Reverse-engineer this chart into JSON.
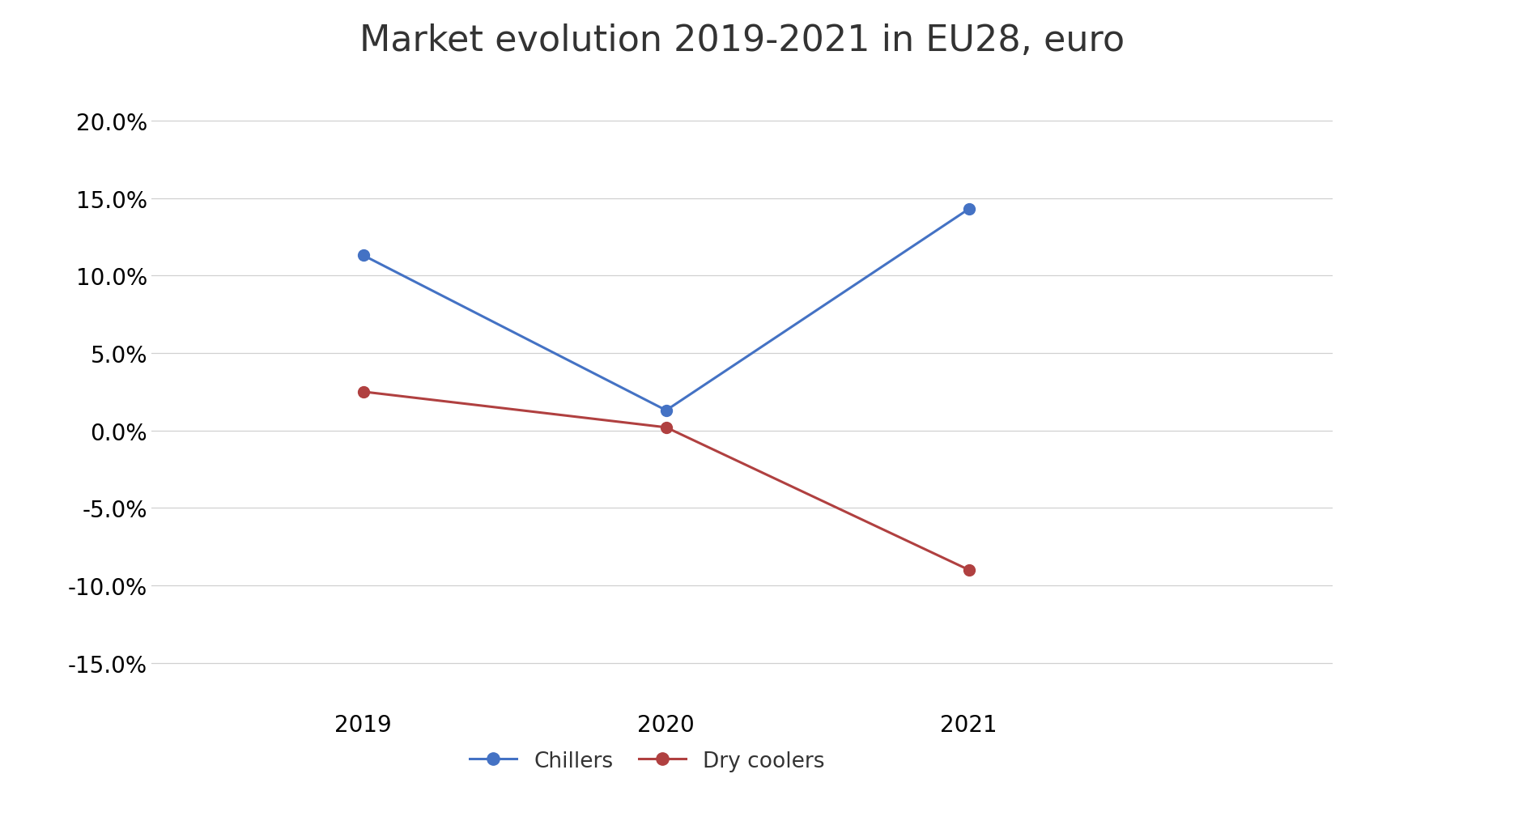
{
  "title": "Market evolution 2019-2021 in EU28, euro",
  "years": [
    2019,
    2020,
    2021
  ],
  "chillers": [
    0.113,
    0.013,
    0.143
  ],
  "dry_coolers": [
    0.025,
    0.002,
    -0.09
  ],
  "chillers_label": "Chillers",
  "dry_coolers_label": "Dry coolers",
  "chillers_color": "#4472C4",
  "dry_coolers_color": "#B04040",
  "ylim": [
    -0.18,
    0.225
  ],
  "yticks": [
    -0.15,
    -0.1,
    -0.05,
    0.0,
    0.05,
    0.1,
    0.15,
    0.2
  ],
  "background_color": "#ffffff",
  "title_fontsize": 32,
  "tick_fontsize": 20,
  "legend_fontsize": 19,
  "marker_size": 10,
  "line_width": 2.2,
  "xlim": [
    2018.3,
    2022.2
  ]
}
